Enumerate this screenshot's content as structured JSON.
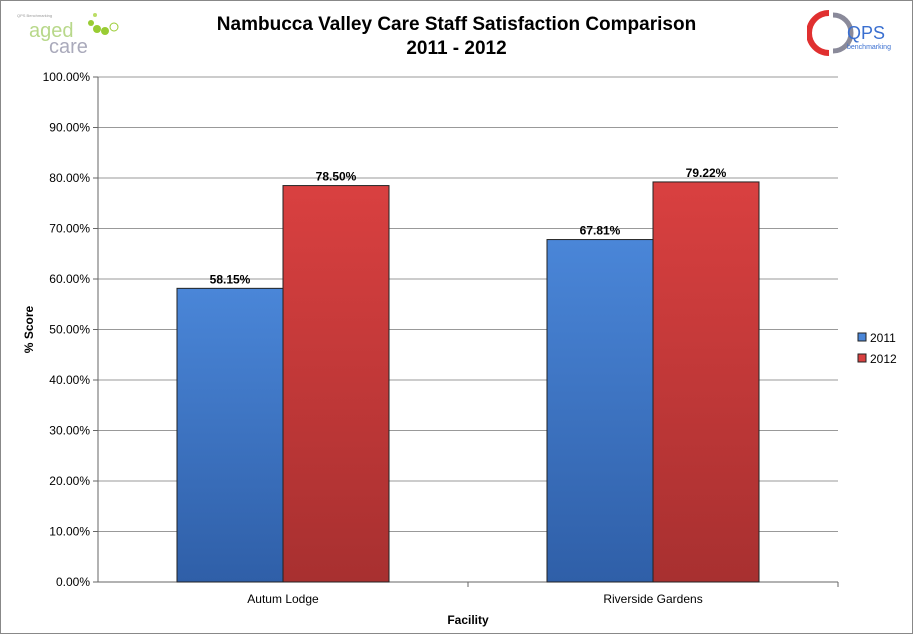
{
  "logos": {
    "left": "aged care",
    "left_small": "QPS Benchmarking",
    "right": "QPS",
    "right_sub": "benchmarking"
  },
  "chart_data": {
    "type": "bar",
    "title": "Nambucca Valley Care Staff Satisfaction Comparison",
    "subtitle": "2011 - 2012",
    "xlabel": "Facility",
    "ylabel": "% Score",
    "ylim": [
      0,
      100
    ],
    "yticks": [
      0,
      10,
      20,
      30,
      40,
      50,
      60,
      70,
      80,
      90,
      100
    ],
    "ytick_labels": [
      "0.00%",
      "10.00%",
      "20.00%",
      "30.00%",
      "40.00%",
      "50.00%",
      "60.00%",
      "70.00%",
      "80.00%",
      "90.00%",
      "100.00%"
    ],
    "categories": [
      "Autum Lodge",
      "Riverside Gardens"
    ],
    "series": [
      {
        "name": "2011",
        "values": [
          58.15,
          67.81
        ],
        "labels": [
          "58.15%",
          "67.81%"
        ],
        "color": "#4a86d8"
      },
      {
        "name": "2012",
        "values": [
          78.5,
          79.22
        ],
        "labels": [
          "78.50%",
          "79.22%"
        ],
        "color": "#d94040"
      }
    ],
    "grid": true,
    "legend": "right"
  }
}
